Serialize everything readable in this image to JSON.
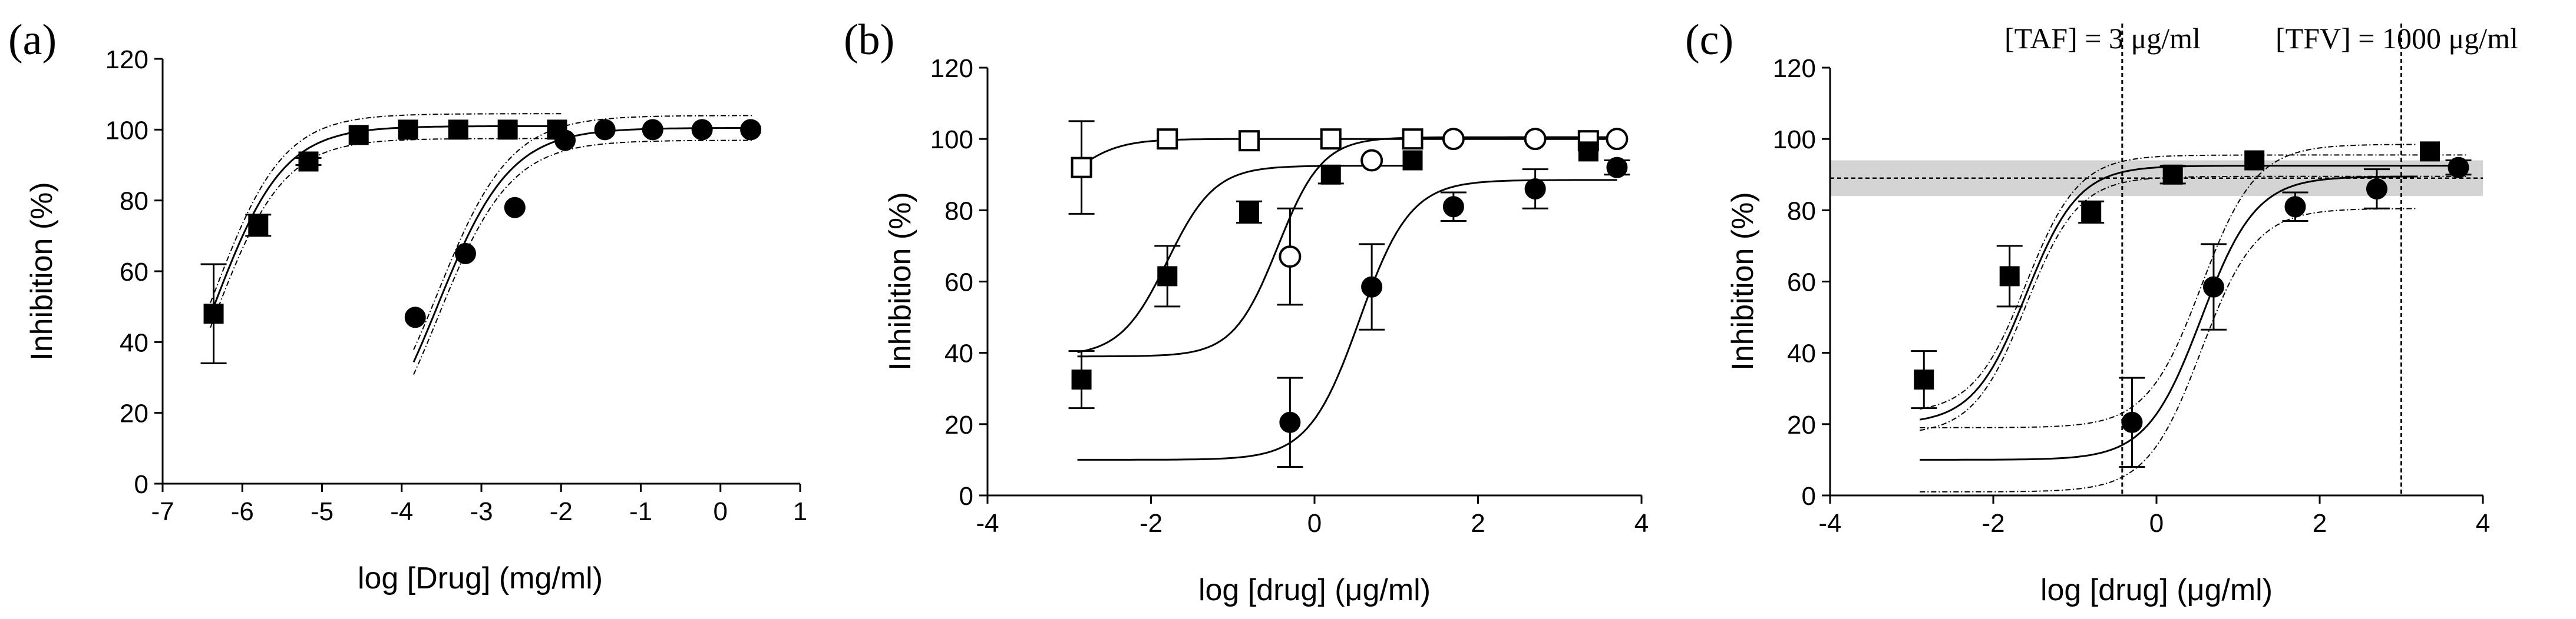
{
  "figure": {
    "description_panels": [
      "a",
      "b",
      "c"
    ]
  },
  "chart_data": [
    {
      "type": "scatter",
      "panel_label": "(a)",
      "xlabel": "log [Drug] (mg/ml)",
      "ylabel": "Inhibition (%)",
      "xlim": [
        -7,
        1
      ],
      "ylim": [
        0,
        120
      ],
      "xticks": [
        "-7",
        "-6",
        "-5",
        "-4",
        "-3",
        "-2",
        "-1",
        "0",
        "1"
      ],
      "yticks": [
        "0",
        "20",
        "40",
        "60",
        "80",
        "100",
        "120"
      ],
      "series": [
        {
          "name": "filled squares",
          "marker": "square-filled",
          "points": [
            {
              "x": -6.36,
              "y": 48,
              "err": 14
            },
            {
              "x": -5.8,
              "y": 73,
              "err": 3
            },
            {
              "x": -5.17,
              "y": 91,
              "err": 1
            },
            {
              "x": -4.54,
              "y": 98.5,
              "err": 0
            },
            {
              "x": -3.92,
              "y": 100,
              "err": 0
            },
            {
              "x": -3.29,
              "y": 100,
              "err": 0
            },
            {
              "x": -2.67,
              "y": 100,
              "err": 0
            },
            {
              "x": -2.05,
              "y": 100,
              "err": 0
            }
          ],
          "fit": {
            "bottom": 0,
            "top": 101,
            "ec50": -6.35,
            "hill": 1.0,
            "band": 3.5,
            "from": -6.4,
            "to": -2.0
          }
        },
        {
          "name": "filled circles",
          "marker": "circle-filled",
          "points": [
            {
              "x": -3.83,
              "y": 47,
              "err": 0
            },
            {
              "x": -3.2,
              "y": 65,
              "err": 0
            },
            {
              "x": -2.58,
              "y": 78,
              "err": 0
            },
            {
              "x": -1.95,
              "y": 97,
              "err": 0
            },
            {
              "x": -1.45,
              "y": 100,
              "err": 0
            },
            {
              "x": -0.85,
              "y": 100,
              "err": 0
            },
            {
              "x": -0.23,
              "y": 100,
              "err": 0
            },
            {
              "x": 0.38,
              "y": 100,
              "err": 0
            }
          ],
          "fit": {
            "bottom": 0,
            "top": 100.5,
            "ec50": -3.55,
            "hill": 0.95,
            "band": 3.5,
            "from": -3.85,
            "to": 0.4
          }
        }
      ]
    },
    {
      "type": "scatter",
      "panel_label": "(b)",
      "xlabel": "log [drug] (μg/ml)",
      "ylabel": "Inhibition (%)",
      "xlim": [
        -4,
        4
      ],
      "ylim": [
        0,
        120
      ],
      "xticks": [
        "-4",
        "-2",
        "0",
        "2",
        "4"
      ],
      "yticks": [
        "0",
        "20",
        "40",
        "60",
        "80",
        "100",
        "120"
      ],
      "series": [
        {
          "name": "open squares",
          "marker": "square-open",
          "points": [
            {
              "x": -2.85,
              "y": 92,
              "err": 13
            },
            {
              "x": -1.8,
              "y": 100,
              "err": 0
            },
            {
              "x": -0.8,
              "y": 99.5,
              "err": 0
            },
            {
              "x": 0.2,
              "y": 100,
              "err": 0
            },
            {
              "x": 1.2,
              "y": 100,
              "err": 0
            },
            {
              "x": 3.35,
              "y": 99.5,
              "err": 0
            }
          ],
          "fit": {
            "bottom": 80,
            "top": 100,
            "ec50": -3.0,
            "hill": 1.5,
            "band": 0,
            "from": -2.9,
            "to": 3.7
          }
        },
        {
          "name": "open circles",
          "marker": "circle-open",
          "points": [
            {
              "x": -0.3,
              "y": 67,
              "err": 13.5
            },
            {
              "x": 0.7,
              "y": 94,
              "err": 0
            },
            {
              "x": 1.7,
              "y": 100,
              "err": 0
            },
            {
              "x": 2.7,
              "y": 100,
              "err": 0
            },
            {
              "x": 3.7,
              "y": 100,
              "err": 0
            }
          ],
          "fit": {
            "bottom": 39,
            "top": 100.5,
            "ec50": -0.45,
            "hill": 1.6,
            "band": 0,
            "from": -2.9,
            "to": 3.7
          }
        },
        {
          "name": "filled squares",
          "marker": "square-filled",
          "points": [
            {
              "x": -2.85,
              "y": 32.5,
              "err": 8
            },
            {
              "x": -1.8,
              "y": 61.5,
              "err": 8.5
            },
            {
              "x": -0.8,
              "y": 79.5,
              "err": 3
            },
            {
              "x": 0.2,
              "y": 90,
              "err": 2.5
            },
            {
              "x": 1.2,
              "y": 94,
              "err": 0
            },
            {
              "x": 3.35,
              "y": 96.5,
              "err": 0
            }
          ],
          "fit": {
            "bottom": 39,
            "top": 92.5,
            "ec50": -1.8,
            "hill": 1.5,
            "band": 0,
            "from": -2.9,
            "to": 1.2
          }
        },
        {
          "name": "filled circles",
          "marker": "circle-filled",
          "points": [
            {
              "x": -0.3,
              "y": 20.5,
              "err": 12.5
            },
            {
              "x": 0.7,
              "y": 58.5,
              "err": 12
            },
            {
              "x": 1.7,
              "y": 81,
              "err": 4
            },
            {
              "x": 2.7,
              "y": 86,
              "err": 5.5
            },
            {
              "x": 3.7,
              "y": 92,
              "err": 2
            }
          ],
          "fit": {
            "bottom": 10,
            "top": 88.5,
            "ec50": 0.55,
            "hill": 1.4,
            "band": 0,
            "from": -2.9,
            "to": 3.7
          }
        }
      ]
    },
    {
      "type": "scatter",
      "panel_label": "(c)",
      "xlabel": "log [drug] (μg/ml)",
      "ylabel": "Inhibition (%)",
      "xlim": [
        -4,
        4
      ],
      "ylim": [
        0,
        120
      ],
      "xticks": [
        "-4",
        "-2",
        "0",
        "2",
        "4"
      ],
      "yticks": [
        "0",
        "20",
        "40",
        "60",
        "80",
        "100",
        "120"
      ],
      "annotations": [
        "[TAF] = 3 μg/ml",
        "[TFV] = 1000 μg/ml"
      ],
      "vlines": [
        -0.42,
        3.0
      ],
      "hline": 89,
      "band": [
        84,
        94
      ],
      "series": [
        {
          "name": "filled squares",
          "marker": "square-filled",
          "points": [
            {
              "x": -2.85,
              "y": 32.5,
              "err": 8
            },
            {
              "x": -1.8,
              "y": 61.5,
              "err": 8.5
            },
            {
              "x": -0.8,
              "y": 79.5,
              "err": 3
            },
            {
              "x": 0.2,
              "y": 90,
              "err": 2.5
            },
            {
              "x": 1.2,
              "y": 94,
              "err": 0
            },
            {
              "x": 3.35,
              "y": 96.5,
              "err": 0
            }
          ],
          "fit": {
            "bottom": 20,
            "top": 92.5,
            "ec50": -1.6,
            "hill": 1.35,
            "band": 3,
            "from": -2.9,
            "to": 3.8
          }
        },
        {
          "name": "filled circles",
          "marker": "circle-filled",
          "points": [
            {
              "x": -0.3,
              "y": 20.5,
              "err": 12.5
            },
            {
              "x": 0.7,
              "y": 58.5,
              "err": 12
            },
            {
              "x": 1.7,
              "y": 81,
              "err": 4
            },
            {
              "x": 2.7,
              "y": 86,
              "err": 5.5
            },
            {
              "x": 3.7,
              "y": 92,
              "err": 2
            }
          ],
          "fit": {
            "bottom": 10,
            "top": 89.5,
            "ec50": 0.55,
            "hill": 1.3,
            "band": 9,
            "from": -2.9,
            "to": 3.2
          }
        }
      ]
    }
  ]
}
